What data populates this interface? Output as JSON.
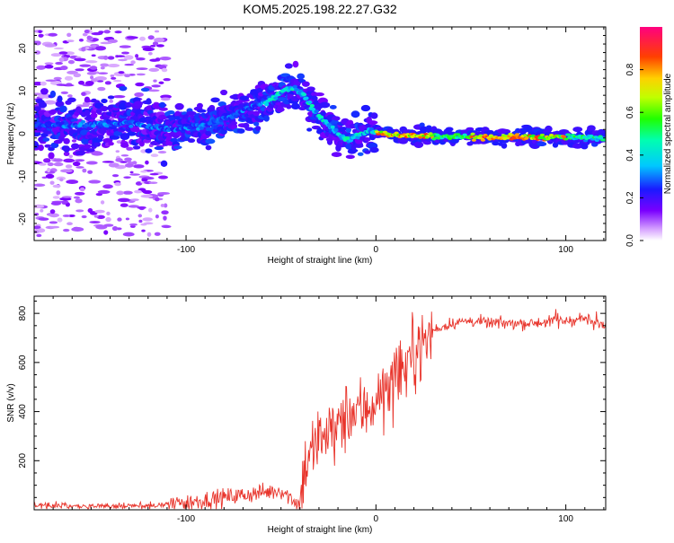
{
  "title": "KOM5.2025.198.22.27.G32",
  "chart_data": [
    {
      "type": "heatmap",
      "xlabel": "Height of straight line (km)",
      "ylabel": "Frequency (Hz)",
      "xlim": [
        -180,
        121
      ],
      "ylim": [
        -25,
        25
      ],
      "xticks": [
        -100,
        0,
        100
      ],
      "yticks": [
        -20,
        -10,
        0,
        10,
        20
      ],
      "colorbar": {
        "label": "Normalized spectral amplitude",
        "range": [
          0,
          1
        ],
        "ticks": [
          "0.0",
          "0.2",
          "0.4",
          "0.6",
          "0.8"
        ]
      },
      "ridge": {
        "x": [
          -180,
          -160,
          -130,
          -110,
          -90,
          -75,
          -60,
          -50,
          -43,
          -38,
          -32,
          -25,
          -20,
          -15,
          -10,
          -5,
          0,
          5,
          20,
          60,
          100,
          110,
          121
        ],
        "y": [
          2,
          2,
          2.5,
          1,
          2,
          4.5,
          7,
          9.5,
          11,
          9,
          5,
          2,
          0,
          -1.5,
          -0.5,
          0.5,
          0.5,
          0,
          -0.5,
          -0.8,
          -0.8,
          -1,
          -1
        ]
      }
    },
    {
      "type": "line",
      "xlabel": "Height of straight line (km)",
      "ylabel": "SNR (v/v)",
      "xlim": [
        -180,
        121
      ],
      "ylim": [
        0,
        870
      ],
      "xticks": [
        -100,
        0,
        100
      ],
      "yticks": [
        200,
        400,
        600,
        800
      ],
      "color": "#e8332a",
      "series_envelope": {
        "x": [
          -180,
          -150,
          -120,
          -100,
          -85,
          -70,
          -50,
          -40,
          -38,
          -35,
          -30,
          -25,
          -20,
          -15,
          -10,
          -5,
          0,
          5,
          10,
          15,
          20,
          25,
          30,
          40,
          50,
          60,
          80,
          100,
          110,
          115,
          121
        ],
        "y": [
          20,
          15,
          15,
          30,
          45,
          60,
          80,
          20,
          160,
          230,
          270,
          320,
          340,
          380,
          400,
          410,
          450,
          480,
          520,
          580,
          640,
          680,
          730,
          760,
          770,
          760,
          760,
          770,
          780,
          760,
          750
        ]
      }
    }
  ]
}
